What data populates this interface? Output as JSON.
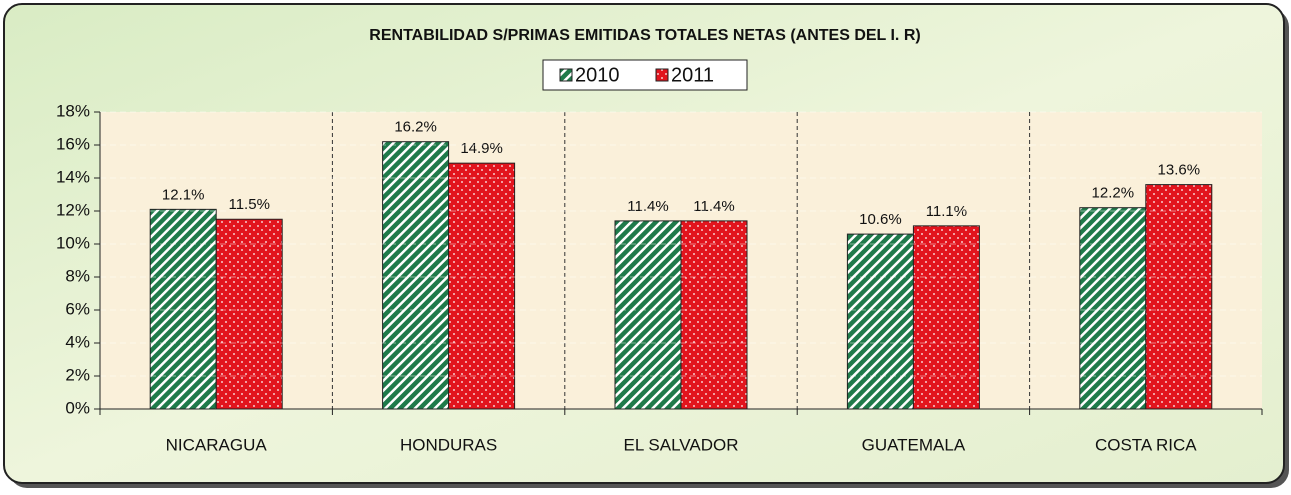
{
  "chart_data": {
    "type": "bar",
    "title": "RENTABILIDAD S/PRIMAS EMITIDAS TOTALES NETAS (ANTES DEL I. R)",
    "categories": [
      "NICARAGUA",
      "HONDURAS",
      "EL SALVADOR",
      "GUATEMALA",
      "COSTA RICA"
    ],
    "series": [
      {
        "name": "2010",
        "color": "#1f7a4a",
        "values": [
          12.1,
          16.2,
          11.4,
          10.6,
          12.2
        ],
        "value_labels": [
          "12.1%",
          "16.2%",
          "11.4%",
          "10.6%",
          "12.2%"
        ]
      },
      {
        "name": "2011",
        "color": "#e2141d",
        "values": [
          11.5,
          14.9,
          11.4,
          11.1,
          13.6
        ],
        "value_labels": [
          "11.5%",
          "14.9%",
          "11.4%",
          "11.1%",
          "13.6%"
        ]
      }
    ],
    "ylim": [
      0,
      18
    ],
    "yticks": [
      {
        "value": 0,
        "label": "0%"
      },
      {
        "value": 2,
        "label": "2%"
      },
      {
        "value": 4,
        "label": "4%"
      },
      {
        "value": 6,
        "label": "6%"
      },
      {
        "value": 8,
        "label": "8%"
      },
      {
        "value": 10,
        "label": "10%"
      },
      {
        "value": 12,
        "label": "12%"
      },
      {
        "value": 14,
        "label": "14%"
      },
      {
        "value": 16,
        "label": "16%"
      },
      {
        "value": 18,
        "label": "18%"
      }
    ],
    "grid": true,
    "legend": "top"
  }
}
